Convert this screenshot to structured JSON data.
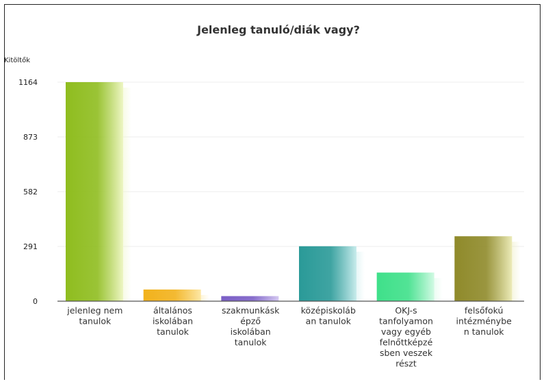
{
  "chart_data": {
    "type": "bar",
    "title": "Jelenleg tanuló/diák vagy?",
    "ylabel": "Kitöltők",
    "xlabel": "",
    "ylim": [
      0,
      1164
    ],
    "yticks": [
      0,
      291,
      582,
      873,
      1164
    ],
    "grid": true,
    "categories": [
      [
        "jelenleg nem",
        "tanulok"
      ],
      [
        "általános",
        "iskolában",
        "tanulok"
      ],
      [
        "szakmunkásk",
        "épző",
        "iskolában",
        "tanulok"
      ],
      [
        "középiskoláb",
        "an tanulok"
      ],
      [
        "OKJ-s",
        "tanfolyamon",
        "vagy egyéb",
        "felnőttképzé",
        "sben veszek",
        "részt"
      ],
      [
        "felsőfokú",
        "intézménybe",
        "n tanulok"
      ]
    ],
    "values": [
      1164,
      62,
      27,
      292,
      152,
      345
    ],
    "colors": [
      [
        "#8fbd1f",
        "#eef6c4"
      ],
      [
        "#f2b21c",
        "#fde8a6"
      ],
      [
        "#7b5fc6",
        "#d5c9f1"
      ],
      [
        "#2a9a98",
        "#c8ecec"
      ],
      [
        "#3fe08a",
        "#d2fae4"
      ],
      [
        "#8f8a2a",
        "#ecebb8"
      ]
    ]
  }
}
